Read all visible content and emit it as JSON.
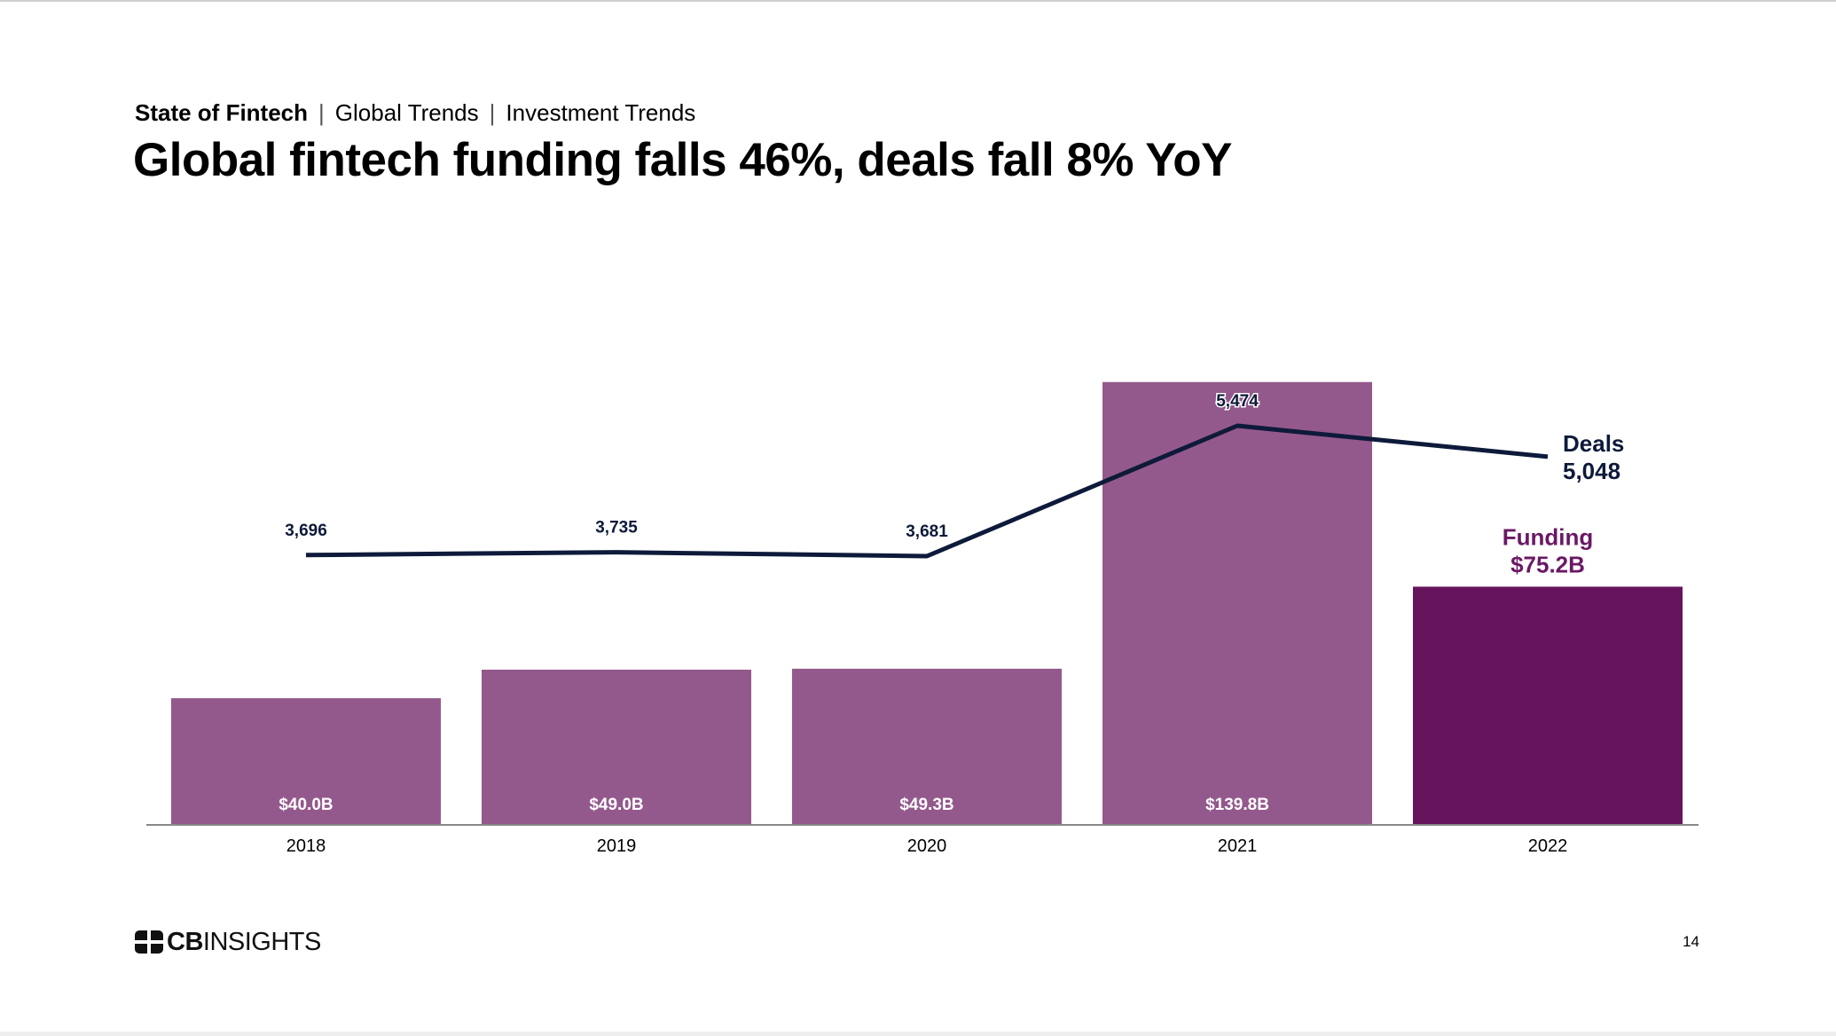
{
  "breadcrumb": {
    "items": [
      "State of Fintech",
      "Global Trends",
      "Investment Trends"
    ],
    "separator": "|"
  },
  "title": "Global fintech funding falls 46%, deals fall 8% YoY",
  "logo": {
    "cb": "CB",
    "rest": "INSIGHTS",
    "icon": "cb-insights-logo-icon"
  },
  "page_number": "14",
  "colors": {
    "bar": "#94598c",
    "bar_highlight": "#66145c",
    "line": "#0e1a3a",
    "funding_label": "#6b1865",
    "deals_label": "#0e1a3a",
    "axis": "#888888"
  },
  "chart_data": {
    "type": "bar",
    "title": "Global fintech funding falls 46%, deals fall 8% YoY",
    "categories": [
      "2018",
      "2019",
      "2020",
      "2021",
      "2022"
    ],
    "series": [
      {
        "name": "Funding",
        "type": "bar",
        "unit": "$B",
        "values": [
          40.0,
          49.0,
          49.3,
          139.8,
          75.2
        ],
        "labels": [
          "$40.0B",
          "$49.0B",
          "$49.3B",
          "$139.8B",
          "$75.2B"
        ],
        "highlight_index": 4
      },
      {
        "name": "Deals",
        "type": "line",
        "values": [
          3696,
          3735,
          3681,
          5474,
          5048
        ],
        "labels": [
          "3,696",
          "3,735",
          "3,681",
          "5,474",
          "5,048"
        ]
      }
    ],
    "series_callouts": {
      "funding": {
        "name": "Funding",
        "value": "$75.2B"
      },
      "deals": {
        "name": "Deals",
        "value": "5,048"
      }
    },
    "ylim_funding": [
      0,
      140
    ],
    "ylim_deals": [
      0,
      7000
    ],
    "xlabel": "",
    "ylabel": "",
    "grid": false,
    "legend": "inline-right"
  }
}
